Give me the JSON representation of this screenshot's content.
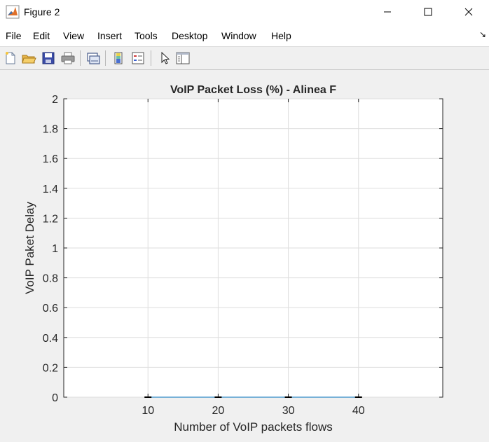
{
  "window": {
    "title": "Figure 2"
  },
  "menu": [
    "File",
    "Edit",
    "View",
    "Insert",
    "Tools",
    "Desktop",
    "Window",
    "Help"
  ],
  "toolbar": {
    "buttons": [
      "new-figure-icon",
      "open-file-icon",
      "save-icon",
      "print-icon",
      "link-plot-icon",
      "insert-colorbar-icon",
      "insert-legend-icon",
      "edit-plot-arrow-icon",
      "property-inspector-icon"
    ]
  },
  "colors": {
    "axes_bg": "#ffffff",
    "figure_bg": "#f0f0f0",
    "grid": "#dedede"
  },
  "chart_data": {
    "type": "line",
    "title": "VoIP Packet Loss (%) - Alinea F",
    "xlabel": "Number of VoIP packets flows",
    "ylabel": "VoIP Paket Delay",
    "xlim": [
      -2,
      52
    ],
    "ylim": [
      0,
      2
    ],
    "xticks": [
      10,
      20,
      30,
      40
    ],
    "yticks": [
      0,
      0.2,
      0.4,
      0.6,
      0.8,
      1,
      1.2,
      1.4,
      1.6,
      1.8,
      2
    ],
    "ytick_labels": [
      "0",
      "0.2",
      "0.4",
      "0.6",
      "0.8",
      "1",
      "1.2",
      "1.4",
      "1.6",
      "1.8",
      "2"
    ],
    "grid": true,
    "series": [
      {
        "values": [
          0,
          0,
          0,
          0
        ],
        "x": [
          10,
          20,
          30,
          40
        ]
      }
    ]
  }
}
